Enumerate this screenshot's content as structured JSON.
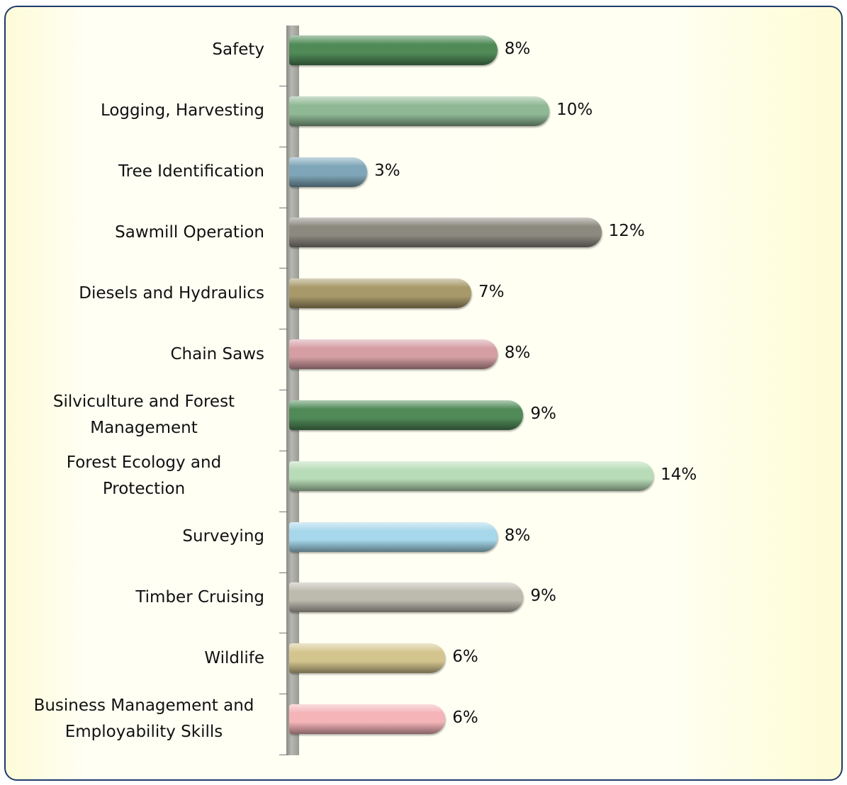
{
  "chart_data": {
    "type": "bar",
    "orientation": "horizontal",
    "categories": [
      "Safety",
      "Logging, Harvesting",
      "Tree Identification",
      "Sawmill Operation",
      "Diesels and Hydraulics",
      "Chain Saws",
      "Silviculture and Forest Management",
      "Forest Ecology and Protection",
      "Surveying",
      "Timber Cruising",
      "Wildlife",
      "Business Management and Employability Skills"
    ],
    "values": [
      8,
      10,
      3,
      12,
      7,
      8,
      9,
      14,
      8,
      9,
      6,
      6
    ],
    "value_labels": [
      "8%",
      "10%",
      "3%",
      "12%",
      "7%",
      "8%",
      "9%",
      "14%",
      "8%",
      "9%",
      "6%",
      "6%"
    ],
    "colors": [
      "#4f8a57",
      "#8fb894",
      "#7fa6b8",
      "#8c897f",
      "#a8996a",
      "#d49ea3",
      "#4f8a57",
      "#b8dcb7",
      "#a6d7ea",
      "#bdbaae",
      "#d4c58e",
      "#f4b4b8"
    ]
  }
}
